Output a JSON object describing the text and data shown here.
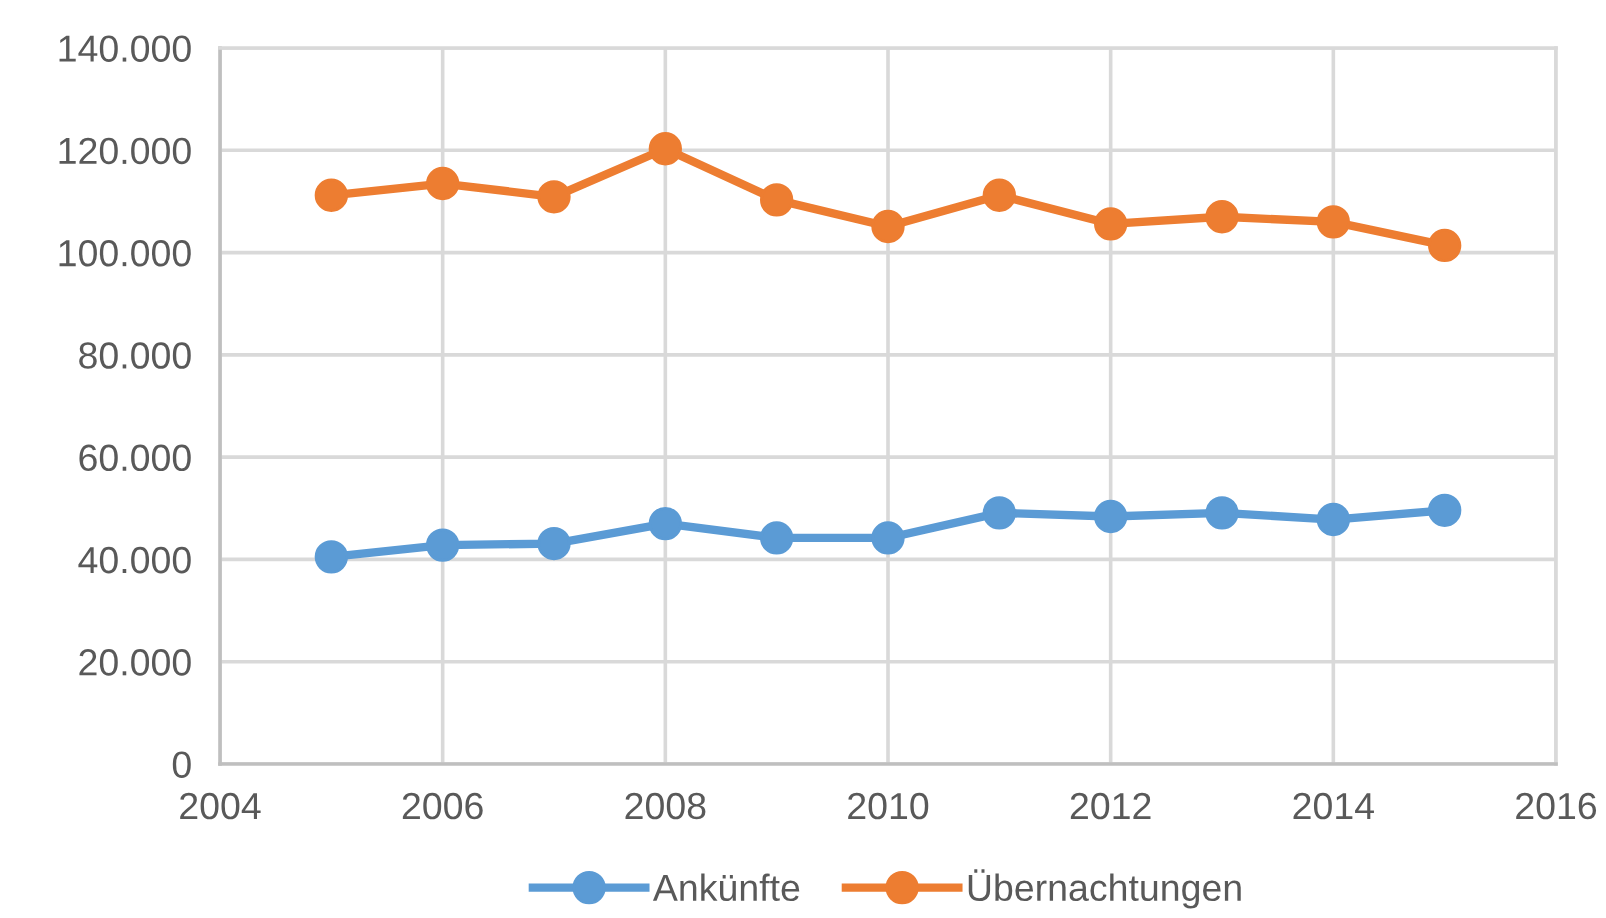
{
  "chart_data": {
    "type": "line",
    "x": [
      2005,
      2006,
      2007,
      2008,
      2009,
      2010,
      2011,
      2012,
      2013,
      2014,
      2015
    ],
    "series": [
      {
        "name": "Ankünfte",
        "color": "#5b9bd5",
        "values": [
          40500,
          42800,
          43100,
          47000,
          44200,
          44200,
          49100,
          48400,
          49100,
          47800,
          49600
        ]
      },
      {
        "name": "Übernachtungen",
        "color": "#ed7d31",
        "values": [
          111200,
          113500,
          110900,
          120300,
          110300,
          105100,
          111200,
          105600,
          107000,
          106000,
          101400
        ]
      }
    ],
    "xlim": [
      2004,
      2016
    ],
    "xticks": [
      2004,
      2006,
      2008,
      2010,
      2012,
      2014,
      2016
    ],
    "ylim": [
      0,
      140000
    ],
    "yticks": [
      {
        "value": 0,
        "label": "0"
      },
      {
        "value": 20000,
        "label": "20.000"
      },
      {
        "value": 40000,
        "label": "40.000"
      },
      {
        "value": 60000,
        "label": "60.000"
      },
      {
        "value": 80000,
        "label": "80.000"
      },
      {
        "value": 100000,
        "label": "100.000"
      },
      {
        "value": 120000,
        "label": "120.000"
      },
      {
        "value": 140000,
        "label": "140.000"
      }
    ],
    "grid": true,
    "legend": "bottom",
    "marker": "circle",
    "line_style": "solid"
  }
}
